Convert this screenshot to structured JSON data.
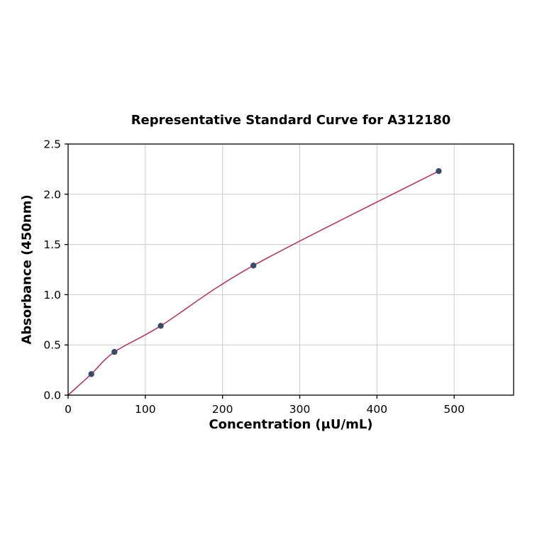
{
  "chart_data": {
    "type": "scatter",
    "title": "Representative Standard Curve for A312180",
    "xlabel": "Concentration (μU/mL)",
    "ylabel": "Absorbance (450nm)",
    "series": [
      {
        "name": "standard-points",
        "x": [
          30,
          60,
          120,
          240,
          480
        ],
        "y": [
          0.21,
          0.43,
          0.69,
          1.29,
          2.23
        ]
      }
    ],
    "fit_curve_origin": [
      0,
      0
    ],
    "xlim": [
      0,
      577
    ],
    "ylim": [
      0,
      2.5
    ],
    "xticks": [
      0,
      100,
      200,
      300,
      400,
      500
    ],
    "yticks": [
      0,
      0.5,
      1,
      1.5,
      2,
      2.5
    ],
    "grid": true,
    "legend": "none",
    "colors": {
      "point": "#3b4a68",
      "curve": "#b03a5e",
      "grid": "#cccccc",
      "axis": "#000000",
      "background": "#ffffff"
    }
  }
}
